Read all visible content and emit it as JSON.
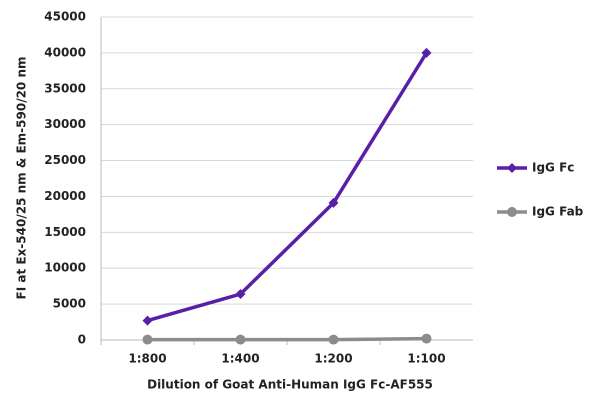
{
  "chart_data": {
    "type": "line",
    "x_label": "Dilution of Goat Anti-Human IgG Fc-AF555",
    "y_label": "FI at Ex-540/25 nm & Em-590/20 nm",
    "categories": [
      "1:800",
      "1:400",
      "1:200",
      "1:100"
    ],
    "series": [
      {
        "name": "IgG Fc",
        "color": "#5a1fa8",
        "marker": "diamond",
        "values": [
          2700,
          6400,
          19100,
          40000
        ]
      },
      {
        "name": "IgG Fab",
        "color": "#8c8c8c",
        "marker": "circle",
        "values": [
          50,
          50,
          50,
          200
        ]
      }
    ],
    "ylim": [
      0,
      45000
    ],
    "yticks": [
      0,
      5000,
      10000,
      15000,
      20000,
      25000,
      30000,
      35000,
      40000,
      45000
    ],
    "grid": true,
    "legend": "right"
  }
}
